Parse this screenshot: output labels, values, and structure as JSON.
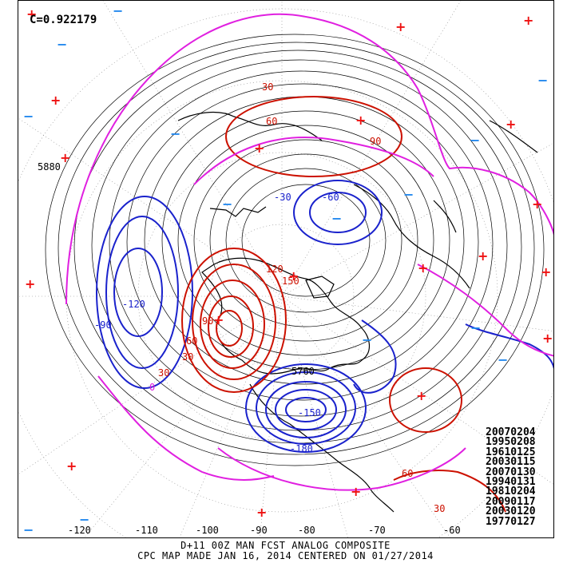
{
  "correlation_label": "C=0.922179",
  "analog_dates": [
    "20070204",
    "19950208",
    "19610125",
    "20030115",
    "20070130",
    "19940131",
    "19810204",
    "20090117",
    "20030120",
    "19770127"
  ],
  "footer": {
    "line1": "D+11 00Z MAN FCST ANALOG COMPOSITE",
    "line2": "CPC MAP MADE JAN 16, 2014 CENTERED ON 01/27/2014"
  },
  "longitude_labels": [
    "-120",
    "-110",
    "-100",
    "-90",
    "-80",
    "-70",
    "-60"
  ],
  "contour_labels": {
    "height": [
      "5880",
      "5760"
    ],
    "anomaly": [
      "30",
      "60",
      "90",
      "30",
      "60",
      "30",
      "-30",
      "-60",
      "-90",
      "-120",
      "-150",
      "-180",
      "0",
      "30",
      "60",
      "90",
      "120",
      "150"
    ]
  },
  "station_markers": {
    "positive": [
      "4",
      "5",
      "6",
      "7",
      "8",
      "9",
      "10",
      "11",
      "12",
      "13",
      "14",
      "15",
      "16",
      "17",
      "18",
      "19",
      "20",
      "21",
      "22",
      "23"
    ],
    "negative": [
      "1",
      "2",
      "3",
      "4",
      "5",
      "6",
      "7",
      "8",
      "9",
      "10",
      "11",
      "12",
      "13",
      "14"
    ]
  },
  "colors": {
    "positive_anomaly": "#cc1100",
    "negative_anomaly": "#1a22cc",
    "zero_contour": "#e020e0",
    "height_contour": "#000000",
    "plus_marker": "#ee1111",
    "minus_marker": "#2288ee"
  },
  "icons": {
    "positive_marker": "plus-marker-icon",
    "negative_marker": "minus-marker-icon"
  }
}
